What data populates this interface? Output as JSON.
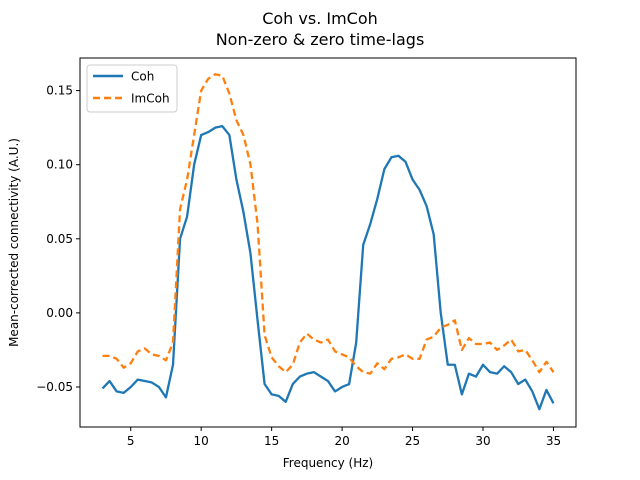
{
  "chart_data": {
    "type": "line",
    "title": "Coh vs. ImCoh",
    "subtitle": "Non-zero & zero time-lags",
    "xlabel": "Frequency (Hz)",
    "ylabel": "Mean-corrected connectivity (A.U.)",
    "xlim": [
      1.4,
      36.6
    ],
    "ylim": [
      -0.077,
      0.172
    ],
    "xticks": [
      5,
      10,
      15,
      20,
      25,
      30,
      35
    ],
    "yticks": [
      -0.05,
      0.0,
      0.05,
      0.1,
      0.15
    ],
    "ytick_labels": [
      "−0.05",
      "0.00",
      "0.05",
      "0.10",
      "0.15"
    ],
    "grid": false,
    "legend_position": "upper-left",
    "x": [
      3.0,
      3.5,
      4.0,
      4.5,
      5.0,
      5.5,
      6.0,
      6.5,
      7.0,
      7.5,
      8.0,
      8.5,
      9.0,
      9.5,
      10.0,
      10.5,
      11.0,
      11.5,
      12.0,
      12.5,
      13.0,
      13.5,
      14.0,
      14.5,
      15.0,
      15.5,
      16.0,
      16.5,
      17.0,
      17.5,
      18.0,
      18.5,
      19.0,
      19.5,
      20.0,
      20.5,
      21.0,
      21.5,
      22.0,
      22.5,
      23.0,
      23.5,
      24.0,
      24.5,
      25.0,
      25.5,
      26.0,
      26.5,
      27.0,
      27.5,
      28.0,
      28.5,
      29.0,
      29.5,
      30.0,
      30.5,
      31.0,
      31.5,
      32.0,
      32.5,
      33.0,
      33.5,
      34.0,
      34.5,
      35.0
    ],
    "series": [
      {
        "name": "Coh",
        "color": "#1f77b4",
        "style": "solid",
        "values": [
          -0.051,
          -0.046,
          -0.053,
          -0.054,
          -0.05,
          -0.045,
          -0.046,
          -0.047,
          -0.05,
          -0.057,
          -0.035,
          0.05,
          0.065,
          0.1,
          0.12,
          0.122,
          0.125,
          0.126,
          0.12,
          0.09,
          0.068,
          0.04,
          -0.005,
          -0.048,
          -0.055,
          -0.056,
          -0.06,
          -0.048,
          -0.043,
          -0.041,
          -0.04,
          -0.043,
          -0.046,
          -0.053,
          -0.05,
          -0.048,
          -0.02,
          0.046,
          0.06,
          0.077,
          0.097,
          0.105,
          0.106,
          0.102,
          0.09,
          0.083,
          0.072,
          0.053,
          0.0,
          -0.035,
          -0.035,
          -0.055,
          -0.041,
          -0.043,
          -0.035,
          -0.04,
          -0.041,
          -0.036,
          -0.04,
          -0.048,
          -0.045,
          -0.053,
          -0.065,
          -0.052,
          -0.061
        ]
      },
      {
        "name": "ImCoh",
        "color": "#ff7f0e",
        "style": "dashed",
        "values": [
          -0.029,
          -0.029,
          -0.031,
          -0.037,
          -0.034,
          -0.026,
          -0.024,
          -0.028,
          -0.029,
          -0.032,
          -0.02,
          0.07,
          0.09,
          0.12,
          0.15,
          0.158,
          0.161,
          0.16,
          0.148,
          0.13,
          0.12,
          0.1,
          0.06,
          -0.015,
          -0.03,
          -0.036,
          -0.04,
          -0.035,
          -0.02,
          -0.014,
          -0.018,
          -0.02,
          -0.018,
          -0.026,
          -0.028,
          -0.03,
          -0.036,
          -0.04,
          -0.041,
          -0.034,
          -0.038,
          -0.031,
          -0.03,
          -0.028,
          -0.031,
          -0.031,
          -0.018,
          -0.016,
          -0.01,
          -0.008,
          -0.005,
          -0.025,
          -0.017,
          -0.021,
          -0.021,
          -0.02,
          -0.025,
          -0.022,
          -0.018,
          -0.026,
          -0.025,
          -0.032,
          -0.04,
          -0.033,
          -0.04
        ]
      }
    ]
  }
}
